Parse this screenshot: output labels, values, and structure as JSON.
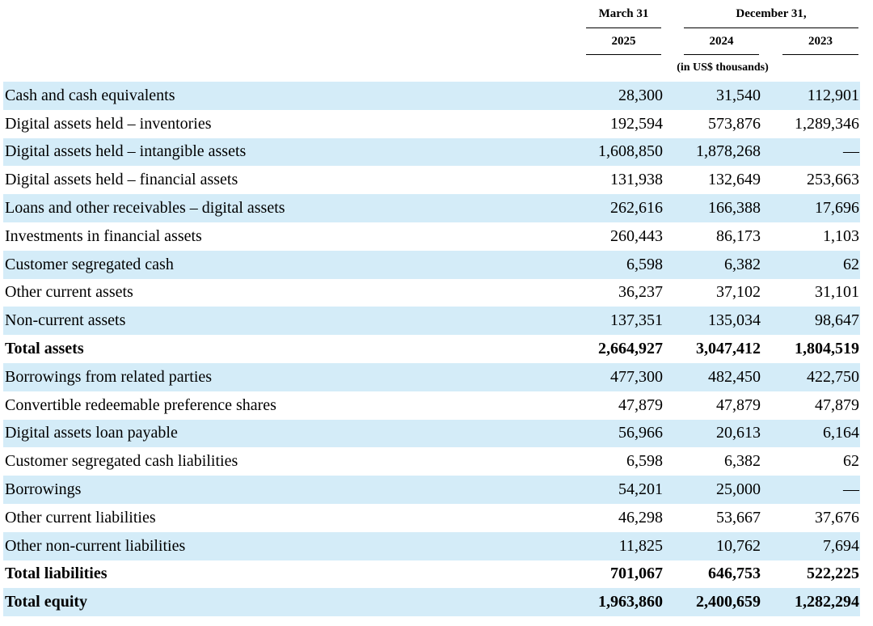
{
  "header": {
    "period_march": "March 31",
    "period_december": "December 31,",
    "years": [
      "2025",
      "2024",
      "2023"
    ],
    "unit_note": "(in US$ thousands)"
  },
  "rows": [
    {
      "label": "Cash and cash equivalents",
      "values": [
        "28,300",
        "31,540",
        "112,901"
      ],
      "total": false
    },
    {
      "label": "Digital assets held – inventories",
      "values": [
        "192,594",
        "573,876",
        "1,289,346"
      ],
      "total": false
    },
    {
      "label": "Digital assets held – intangible assets",
      "values": [
        "1,608,850",
        "1,878,268",
        "—"
      ],
      "total": false
    },
    {
      "label": "Digital assets held – financial assets",
      "values": [
        "131,938",
        "132,649",
        "253,663"
      ],
      "total": false
    },
    {
      "label": "Loans and other receivables – digital assets",
      "values": [
        "262,616",
        "166,388",
        "17,696"
      ],
      "total": false
    },
    {
      "label": "Investments in financial assets",
      "values": [
        "260,443",
        "86,173",
        "1,103"
      ],
      "total": false
    },
    {
      "label": "Customer segregated cash",
      "values": [
        "6,598",
        "6,382",
        "62"
      ],
      "total": false
    },
    {
      "label": "Other current assets",
      "values": [
        "36,237",
        "37,102",
        "31,101"
      ],
      "total": false
    },
    {
      "label": "Non-current assets",
      "values": [
        "137,351",
        "135,034",
        "98,647"
      ],
      "total": false
    },
    {
      "label": "Total assets",
      "values": [
        "2,664,927",
        "3,047,412",
        "1,804,519"
      ],
      "total": true
    },
    {
      "label": "Borrowings from related parties",
      "values": [
        "477,300",
        "482,450",
        "422,750"
      ],
      "total": false
    },
    {
      "label": "Convertible redeemable preference shares",
      "values": [
        "47,879",
        "47,879",
        "47,879"
      ],
      "total": false
    },
    {
      "label": "Digital assets loan payable",
      "values": [
        "56,966",
        "20,613",
        "6,164"
      ],
      "total": false
    },
    {
      "label": "Customer segregated cash liabilities",
      "values": [
        "6,598",
        "6,382",
        "62"
      ],
      "total": false
    },
    {
      "label": "Borrowings",
      "values": [
        "54,201",
        "25,000",
        "—"
      ],
      "total": false
    },
    {
      "label": "Other current liabilities",
      "values": [
        "46,298",
        "53,667",
        "37,676"
      ],
      "total": false
    },
    {
      "label": "Other non-current liabilities",
      "values": [
        "11,825",
        "10,762",
        "7,694"
      ],
      "total": false
    },
    {
      "label": "Total liabilities",
      "values": [
        "701,067",
        "646,753",
        "522,225"
      ],
      "total": true
    },
    {
      "label": "Total equity",
      "values": [
        "1,963,860",
        "2,400,659",
        "1,282,294"
      ],
      "total": true
    }
  ]
}
